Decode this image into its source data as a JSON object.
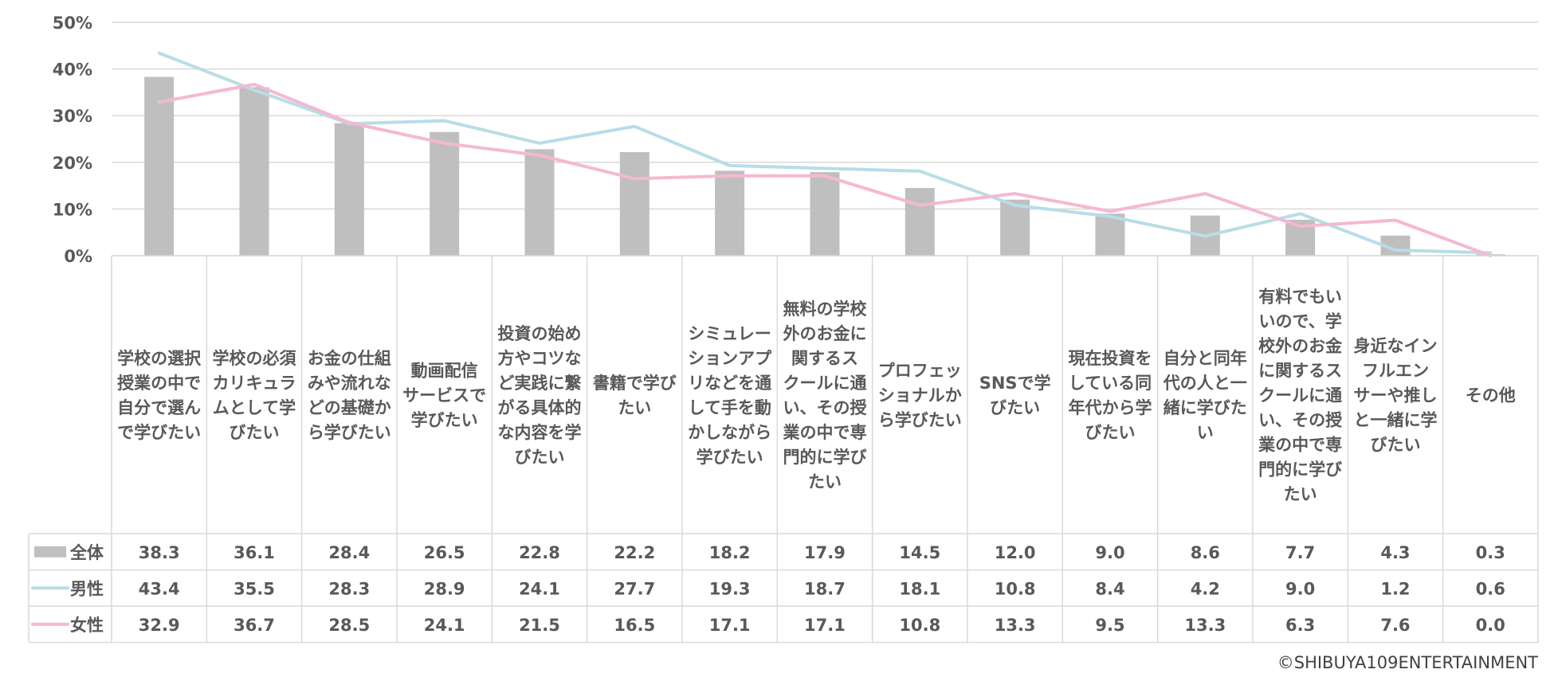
{
  "chart_data": {
    "type": "bar",
    "categories": [
      "学校の選択授業の中で自分で選んで学びたい",
      "学校の必須カリキュラムとして学びたい",
      "お金の仕組みや流れなどの基礎から学びたい",
      "動画配信サービスで学びたい",
      "投資の始め方やコツなど実践に繋がる具体的な内容を学びたい",
      "書籍で学びたい",
      "シミュレーションアプリなどを通して手を動かしながら学びたい",
      "無料の学校外のお金に関するスクールに通い、その授業の中で専門的に学びたい",
      "プロフェッショナルから学びたい",
      "SNSで学びたい",
      "現在投資をしている同年代から学びたい",
      "自分と同年代の人と一緒に学びたい",
      "有料でもいいので、学校外のお金に関するスクールに通い、その授業の中で専門的に学びたい",
      "身近なインフルエンサーや推しと一緒に学びたい",
      "その他"
    ],
    "category_lines": [
      [
        "学校の選択",
        "授業の中で",
        "自分で選ん",
        "で学びたい"
      ],
      [
        "学校の必須",
        "カリキュラ",
        "ムとして学",
        "びたい"
      ],
      [
        "お金の仕組",
        "みや流れな",
        "どの基礎か",
        "ら学びたい"
      ],
      [
        "動画配信",
        "サービスで",
        "学びたい"
      ],
      [
        "投資の始め",
        "方やコツな",
        "ど実践に繋",
        "がる具体的",
        "な内容を学",
        "びたい"
      ],
      [
        "書籍で学び",
        "たい"
      ],
      [
        "シミュレー",
        "ションアプ",
        "リなどを通",
        "して手を動",
        "かしながら",
        "学びたい"
      ],
      [
        "無料の学校",
        "外のお金に",
        "関するス",
        "クールに通",
        "い、その授",
        "業の中で専",
        "門的に学び",
        "たい"
      ],
      [
        "プロフェッ",
        "ショナルか",
        "ら学びたい"
      ],
      [
        "SNSで学",
        "びたい"
      ],
      [
        "現在投資を",
        "している同",
        "年代から学",
        "びたい"
      ],
      [
        "自分と同年",
        "代の人と一",
        "緒に学びた",
        "い"
      ],
      [
        "有料でもい",
        "いので、学",
        "校外のお金",
        "に関するス",
        "クールに通",
        "い、その授",
        "業の中で専",
        "門的に学び",
        "たい"
      ],
      [
        "身近なイン",
        "フルエン",
        "サーや推し",
        "と一緒に学",
        "びたい"
      ],
      [
        "その他"
      ]
    ],
    "series": [
      {
        "name": "全体",
        "kind": "bar",
        "color": "#bfbfbf",
        "values": [
          38.3,
          36.1,
          28.4,
          26.5,
          22.8,
          22.2,
          18.2,
          17.9,
          14.5,
          12.0,
          9.0,
          8.6,
          7.7,
          4.3,
          0.3
        ],
        "labels": [
          "38.3",
          "36.1",
          "28.4",
          "26.5",
          "22.8",
          "22.2",
          "18.2",
          "17.9",
          "14.5",
          "12.0",
          "9.0",
          "8.6",
          "7.7",
          "4.3",
          "0.3"
        ]
      },
      {
        "name": "男性",
        "kind": "line",
        "color": "#b7dde8",
        "values": [
          43.4,
          35.5,
          28.3,
          28.9,
          24.1,
          27.7,
          19.3,
          18.7,
          18.1,
          10.8,
          8.4,
          4.2,
          9.0,
          1.2,
          0.6
        ],
        "labels": [
          "43.4",
          "35.5",
          "28.3",
          "28.9",
          "24.1",
          "27.7",
          "19.3",
          "18.7",
          "18.1",
          "10.8",
          "8.4",
          "4.2",
          "9.0",
          "1.2",
          "0.6"
        ]
      },
      {
        "name": "女性",
        "kind": "line",
        "color": "#f5b8d2",
        "values": [
          32.9,
          36.7,
          28.5,
          24.1,
          21.5,
          16.5,
          17.1,
          17.1,
          10.8,
          13.3,
          9.5,
          13.3,
          6.3,
          7.6,
          0.0
        ],
        "labels": [
          "32.9",
          "36.7",
          "28.5",
          "24.1",
          "21.5",
          "16.5",
          "17.1",
          "17.1",
          "10.8",
          "13.3",
          "9.5",
          "13.3",
          "6.3",
          "7.6",
          "0.0"
        ]
      }
    ],
    "yticks": [
      "0%",
      "10%",
      "20%",
      "30%",
      "40%",
      "50%"
    ],
    "ylim": [
      0,
      50
    ],
    "grid": true,
    "legend": "data-table"
  },
  "footer": {
    "copyright": "©SHIBUYA109ENTERTAINMENT"
  }
}
